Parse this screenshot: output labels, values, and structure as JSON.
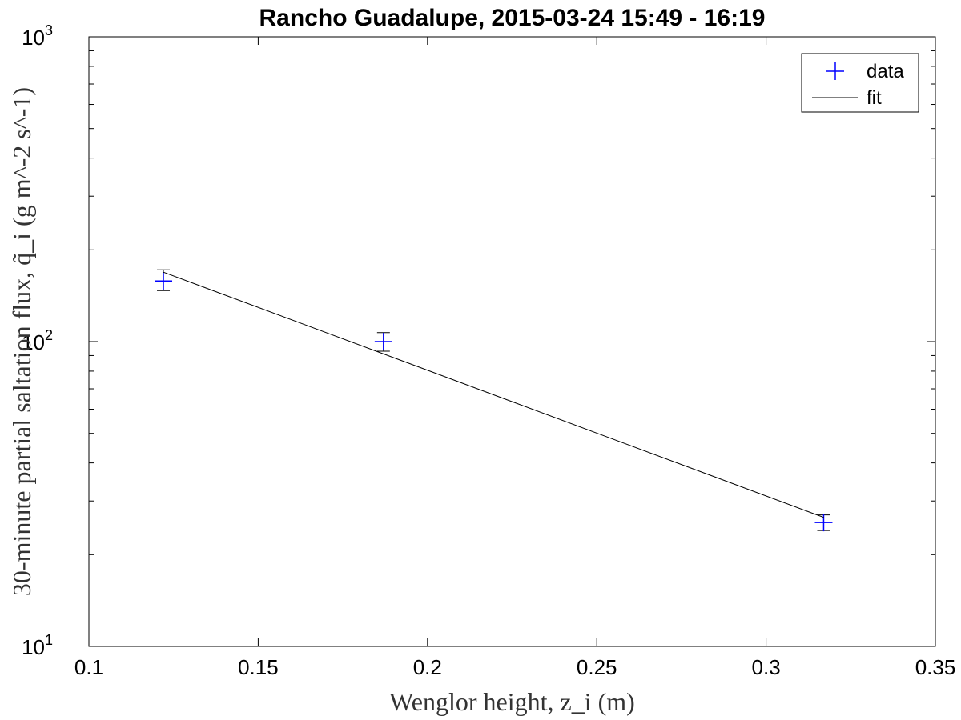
{
  "chart_data": {
    "type": "scatter",
    "title": "Rancho Guadalupe, 2015-03-24 15:49 - 16:19",
    "xlabel": "Wenglor height, z_i (m)",
    "ylabel": "30-minute partial saltation flux, q̃_i (g m^-2 s^-1)",
    "xlim": [
      0.1,
      0.35
    ],
    "ylim": [
      10,
      1000
    ],
    "yscale": "log",
    "grid": false,
    "legend_position": "top-right",
    "x_ticks": [
      "0.1",
      "0.15",
      "0.2",
      "0.25",
      "0.3",
      "0.35"
    ],
    "y_ticks": [
      {
        "base": "10",
        "exp": "1"
      },
      {
        "base": "10",
        "exp": "2"
      },
      {
        "base": "10",
        "exp": "3"
      }
    ],
    "series": [
      {
        "name": "data",
        "kind": "scatter",
        "color": "#0000ff",
        "marker": "plus",
        "x": [
          0.122,
          0.187,
          0.317
        ],
        "y": [
          158,
          100,
          25.5
        ],
        "err_low": [
          147,
          93,
          24.0
        ],
        "err_high": [
          172,
          107,
          27.0
        ]
      },
      {
        "name": "fit",
        "kind": "line",
        "color": "#000000",
        "x": [
          0.122,
          0.317
        ],
        "y": [
          169,
          26.5
        ]
      }
    ]
  }
}
